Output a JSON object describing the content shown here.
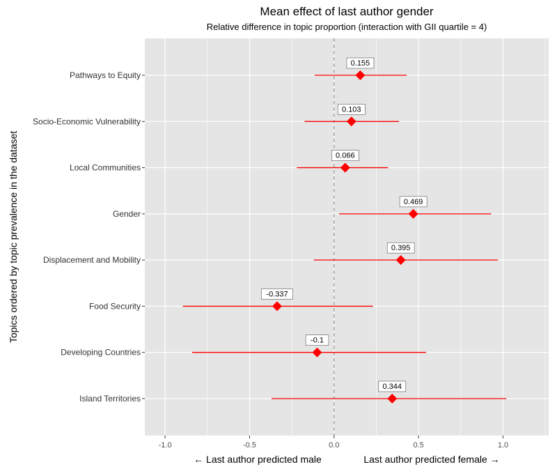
{
  "chart_data": {
    "type": "scatter",
    "title": "Mean effect of last author gender",
    "subtitle": "Relative difference in topic proportion (interaction with GII quartile = 4)",
    "ylabel": "Topics ordered by topic prevalence in the dataset",
    "xlabel_left": "← Last author predicted male",
    "xlabel_right": "Last author predicted female →",
    "xlim": [
      -1.12,
      1.27
    ],
    "xticks": [
      -1.0,
      -0.5,
      0.0,
      0.5,
      1.0
    ],
    "xtick_labels": [
      "-1.0",
      "-0.5",
      "0.0",
      "0.5",
      "1.0"
    ],
    "reference_line": 0,
    "grid": true,
    "colors": {
      "panel": "#e5e5e5",
      "grid": "#ffffff",
      "point": "#ff0000",
      "reference": "#a8a8a8"
    },
    "points": [
      {
        "label": "Pathways to Equity",
        "value": 0.155,
        "value_label": "0.155",
        "lower": -0.115,
        "upper": 0.43
      },
      {
        "label": "Socio-Economic Vulnerability",
        "value": 0.103,
        "value_label": "0.103",
        "lower": -0.175,
        "upper": 0.385
      },
      {
        "label": "Local Communities",
        "value": 0.066,
        "value_label": "0.066",
        "lower": -0.22,
        "upper": 0.32
      },
      {
        "label": "Gender",
        "value": 0.469,
        "value_label": "0.469",
        "lower": 0.03,
        "upper": 0.93
      },
      {
        "label": "Displacement and Mobility",
        "value": 0.395,
        "value_label": "0.395",
        "lower": -0.12,
        "upper": 0.97
      },
      {
        "label": "Food Security",
        "value": -0.337,
        "value_label": "-0.337",
        "lower": -0.895,
        "upper": 0.23
      },
      {
        "label": "Developing Countries",
        "value": -0.1,
        "value_label": "-0.1",
        "lower": -0.84,
        "upper": 0.545
      },
      {
        "label": "Island Territories",
        "value": 0.344,
        "value_label": "0.344",
        "lower": -0.37,
        "upper": 1.02
      }
    ]
  }
}
